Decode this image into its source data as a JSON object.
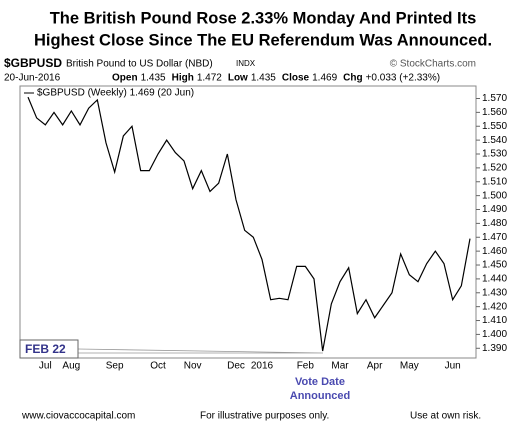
{
  "chart_data": {
    "type": "line",
    "title": [
      "The British Pound Rose 2.33% Monday And Printed Its",
      "Highest Close Since The EU Referendum Was Announced."
    ],
    "symbol": "$GBPUSD",
    "instrument": "British Pound to US Dollar (NBD)",
    "exchange": "INDX",
    "copyright": "© StockCharts.com",
    "date": "20-Jun-2016",
    "quote": [
      {
        "label": "Open",
        "value": "1.435"
      },
      {
        "label": "High",
        "value": "1.472"
      },
      {
        "label": "Low",
        "value": "1.435"
      },
      {
        "label": "Close",
        "value": "1.469"
      },
      {
        "label": "Chg",
        "value": "+0.033 (+2.33%)"
      }
    ],
    "categories": [
      null,
      null,
      "Jul",
      null,
      null,
      "Aug",
      null,
      null,
      null,
      null,
      "Sep",
      null,
      null,
      null,
      null,
      "Oct",
      null,
      null,
      null,
      "Nov",
      null,
      null,
      null,
      null,
      "Dec",
      null,
      null,
      "2016",
      null,
      null,
      null,
      null,
      "Feb",
      null,
      null,
      null,
      "Mar",
      null,
      null,
      null,
      "Apr",
      null,
      null,
      null,
      "May",
      null,
      null,
      null,
      null,
      "Jun",
      null,
      null
    ],
    "series": [
      {
        "name": "$GBPUSD (Weekly) 1.469 (20 Jun)",
        "color": "#000000",
        "values": [
          1.571,
          1.556,
          1.551,
          1.56,
          1.551,
          1.561,
          1.551,
          1.563,
          1.569,
          1.538,
          1.517,
          1.543,
          1.55,
          1.518,
          1.518,
          1.53,
          1.54,
          1.531,
          1.525,
          1.505,
          1.518,
          1.503,
          1.509,
          1.53,
          1.497,
          1.475,
          1.47,
          1.454,
          1.425,
          1.426,
          1.425,
          1.449,
          1.449,
          1.44,
          1.388,
          1.422,
          1.438,
          1.448,
          1.415,
          1.425,
          1.412,
          1.421,
          1.43,
          1.458,
          1.443,
          1.438,
          1.451,
          1.46,
          1.451,
          1.425,
          1.435,
          1.469
        ]
      }
    ],
    "ylim": [
      1.383,
      1.579
    ],
    "yticks": [
      {
        "value": 1.39,
        "label": "1.390"
      },
      {
        "value": 1.4,
        "label": "1.400"
      },
      {
        "value": 1.41,
        "label": "1.410"
      },
      {
        "value": 1.42,
        "label": "1.420"
      },
      {
        "value": 1.43,
        "label": "1.430"
      },
      {
        "value": 1.44,
        "label": "1.440"
      },
      {
        "value": 1.45,
        "label": "1.450"
      },
      {
        "value": 1.46,
        "label": "1.460"
      },
      {
        "value": 1.47,
        "label": "1.470"
      },
      {
        "value": 1.48,
        "label": "1.480"
      },
      {
        "value": 1.49,
        "label": "1.490"
      },
      {
        "value": 1.5,
        "label": "1.500"
      },
      {
        "value": 1.51,
        "label": "1.510"
      },
      {
        "value": 1.52,
        "label": "1.520"
      },
      {
        "value": 1.53,
        "label": "1.530"
      },
      {
        "value": 1.54,
        "label": "1.540"
      },
      {
        "value": 1.55,
        "label": "1.550"
      },
      {
        "value": 1.56,
        "label": "1.560"
      },
      {
        "value": 1.57,
        "label": "1.570"
      }
    ],
    "annotations": [
      "FEB 22",
      "Vote Date",
      "Announced"
    ],
    "footer": [
      "www.ciovaccocapital.com",
      "For illustrative purposes only.",
      "Use at own risk."
    ]
  }
}
